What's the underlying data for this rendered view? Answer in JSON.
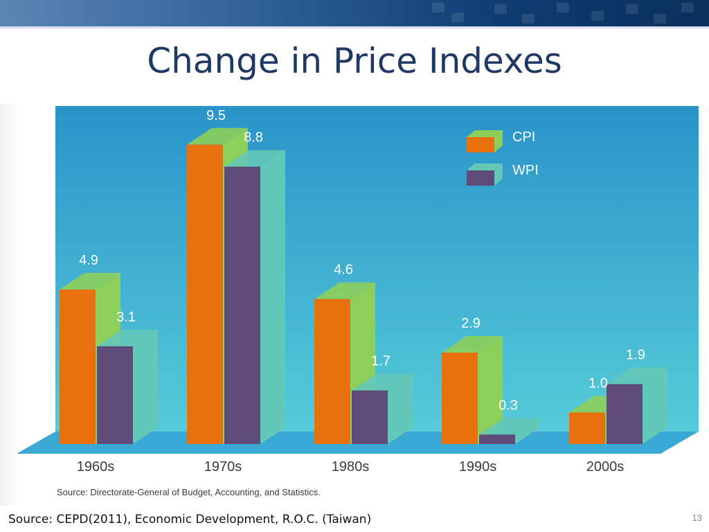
{
  "slide": {
    "title": "Change in Price Indexes",
    "footer_source": "Source: CEPD(2011), Economic Development, R.O.C. (Taiwan)",
    "page_number": "13"
  },
  "colors": {
    "cpi_front": "#e8700e",
    "cpi_side": "#8ccf5b",
    "wpi_front": "#5f4b7a",
    "wpi_side": "#63c8b7",
    "plot_bg_top": "#2a93c9",
    "plot_bg_bottom": "#56cbd8",
    "floor": "#3aa9d6",
    "title": "#1f3864"
  },
  "chart_data": {
    "type": "bar",
    "categories": [
      "1960s",
      "1970s",
      "1980s",
      "1990s",
      "2000s"
    ],
    "series": [
      {
        "name": "CPI",
        "values": [
          4.9,
          9.5,
          4.6,
          2.9,
          1.0
        ],
        "labels": [
          "4.9",
          "9.5",
          "4.6",
          "2.9",
          "1.0"
        ]
      },
      {
        "name": "WPI",
        "values": [
          3.1,
          8.8,
          1.7,
          0.3,
          1.9
        ],
        "labels": [
          "3.1",
          "8.8",
          "1.7",
          "0.3",
          "1.9"
        ]
      }
    ],
    "title": "",
    "xlabel": "",
    "ylabel": "",
    "ylim": [
      0,
      10
    ],
    "grid": false,
    "legend_position": "top-right",
    "source": "Source: Directorate-General of Budget, Accounting, and Statistics."
  }
}
